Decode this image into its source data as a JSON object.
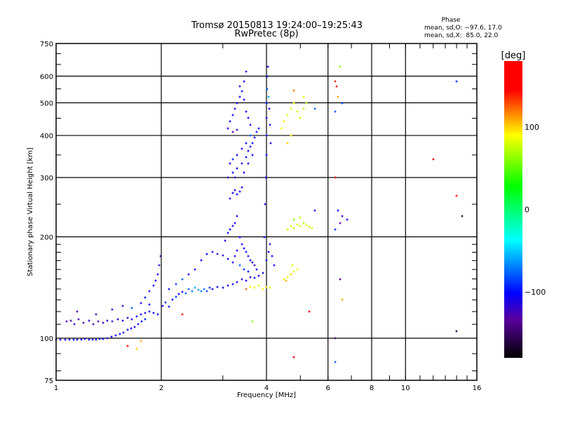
{
  "chart_data": {
    "type": "scatter",
    "title": "Tromsø 20150813 19:24:00–19:25:43",
    "subtitle": "RwPretec (8p)",
    "legend": {
      "title": "Phase",
      "line_o": "mean, sd,O: −97.6, 17.0",
      "line_x": "mean, sd,X:  85.0, 22.0"
    },
    "xlabel": "Frequency [MHz]",
    "ylabel": "Stationary phase Virtual Height [km]",
    "xscale": "log",
    "yscale": "log",
    "xlim": [
      1,
      16
    ],
    "ylim": [
      75,
      750
    ],
    "xticks": [
      1,
      2,
      4,
      6,
      8,
      10,
      16
    ],
    "xtick_labels": [
      "1",
      "2",
      "4",
      "6",
      "8",
      "10",
      "16"
    ],
    "xgrid": [
      2,
      4,
      6,
      8,
      10
    ],
    "yticks": [
      75,
      100,
      200,
      300,
      400,
      500,
      600,
      750
    ],
    "ytick_labels": [
      "75",
      "100",
      "200",
      "300",
      "400",
      "500",
      "600",
      "750"
    ],
    "ygrid": [
      100,
      200,
      300,
      400,
      500,
      600
    ],
    "grid": true,
    "colorbar": {
      "label": "[deg]",
      "range": [
        -180,
        180
      ],
      "ticks": [
        100,
        0,
        -100
      ],
      "tick_labels": [
        "100",
        "0",
        "−100"
      ],
      "stops": [
        {
          "v": -180,
          "c": "#000000"
        },
        {
          "v": -133,
          "c": "#5a00a0"
        },
        {
          "v": -102,
          "c": "#0000ff"
        },
        {
          "v": -37,
          "c": "#00ffff"
        },
        {
          "v": 28,
          "c": "#00ff00"
        },
        {
          "v": 90,
          "c": "#ffff00"
        },
        {
          "v": 145,
          "c": "#ff0000"
        },
        {
          "v": 180,
          "c": "#ff0000"
        }
      ]
    },
    "points_fields": [
      "freq_mhz",
      "height_km",
      "phase_deg"
    ],
    "points": [
      [
        1.0,
        99,
        -110
      ],
      [
        1.03,
        99,
        -110
      ],
      [
        1.06,
        99,
        -105
      ],
      [
        1.09,
        99,
        -110
      ],
      [
        1.12,
        99,
        -100
      ],
      [
        1.15,
        99,
        -110
      ],
      [
        1.18,
        99,
        -105
      ],
      [
        1.21,
        99.5,
        -110
      ],
      [
        1.24,
        99,
        -100
      ],
      [
        1.27,
        99,
        -110
      ],
      [
        1.3,
        99,
        -105
      ],
      [
        1.33,
        99.5,
        -110
      ],
      [
        1.36,
        99.5,
        -100
      ],
      [
        1.4,
        100,
        -110
      ],
      [
        1.44,
        101,
        -105
      ],
      [
        1.48,
        102,
        -110
      ],
      [
        1.52,
        103,
        -100
      ],
      [
        1.56,
        104,
        -110
      ],
      [
        1.6,
        106,
        -105
      ],
      [
        1.64,
        107,
        -100
      ],
      [
        1.68,
        108,
        -110
      ],
      [
        1.72,
        110,
        -105
      ],
      [
        1.76,
        112,
        -100
      ],
      [
        1.8,
        114,
        -95
      ],
      [
        1.07,
        112,
        -125
      ],
      [
        1.1,
        113,
        -130
      ],
      [
        1.13,
        110,
        -120
      ],
      [
        1.16,
        114,
        -125
      ],
      [
        1.2,
        111,
        -130
      ],
      [
        1.24,
        113,
        -120
      ],
      [
        1.28,
        110,
        -125
      ],
      [
        1.32,
        112,
        -130
      ],
      [
        1.36,
        111,
        -120
      ],
      [
        1.4,
        113,
        -115
      ],
      [
        1.45,
        112,
        -125
      ],
      [
        1.5,
        114,
        -110
      ],
      [
        1.55,
        113,
        -115
      ],
      [
        1.6,
        115,
        -120
      ],
      [
        1.65,
        114,
        -110
      ],
      [
        1.7,
        116,
        -105
      ],
      [
        1.75,
        118,
        -100
      ],
      [
        1.8,
        119,
        -110
      ],
      [
        1.85,
        120,
        -105
      ],
      [
        1.9,
        119,
        -100
      ],
      [
        1.95,
        118,
        -110
      ],
      [
        1.15,
        120,
        -130
      ],
      [
        1.3,
        118,
        -125
      ],
      [
        1.45,
        122,
        -120
      ],
      [
        1.55,
        125,
        -120
      ],
      [
        1.65,
        123,
        -80
      ],
      [
        1.75,
        127,
        -110
      ],
      [
        1.85,
        126,
        -100
      ],
      [
        1.8,
        132,
        -100
      ],
      [
        1.85,
        138,
        -110
      ],
      [
        1.9,
        143,
        -105
      ],
      [
        1.93,
        148,
        -110
      ],
      [
        1.95,
        155,
        -100
      ],
      [
        1.97,
        165,
        -120
      ],
      [
        1.99,
        175,
        -130
      ],
      [
        2.02,
        125,
        -100
      ],
      [
        2.06,
        128,
        -95
      ],
      [
        2.1,
        124,
        -100
      ],
      [
        2.15,
        130,
        -105
      ],
      [
        2.2,
        133,
        -90
      ],
      [
        2.25,
        135,
        -100
      ],
      [
        2.3,
        137,
        -110
      ],
      [
        2.35,
        136,
        -80
      ],
      [
        2.4,
        140,
        -75
      ],
      [
        2.45,
        138,
        -70
      ],
      [
        2.5,
        141,
        -60
      ],
      [
        2.55,
        139,
        -65
      ],
      [
        2.6,
        138,
        -70
      ],
      [
        2.65,
        140,
        -75
      ],
      [
        2.7,
        138,
        -85
      ],
      [
        2.75,
        141,
        -95
      ],
      [
        2.8,
        140,
        -110
      ],
      [
        2.9,
        142,
        -100
      ],
      [
        3.0,
        141,
        -105
      ],
      [
        3.1,
        143,
        -110
      ],
      [
        3.2,
        145,
        -100
      ],
      [
        3.3,
        147,
        -110
      ],
      [
        3.4,
        150,
        -120
      ],
      [
        3.5,
        148,
        -105
      ],
      [
        3.6,
        152,
        -110
      ],
      [
        3.7,
        151,
        -100
      ],
      [
        3.8,
        153,
        -110
      ],
      [
        3.9,
        156,
        -105
      ],
      [
        2.1,
        140,
        -100
      ],
      [
        2.2,
        145,
        -90
      ],
      [
        2.3,
        150,
        -80
      ],
      [
        2.4,
        155,
        -100
      ],
      [
        2.5,
        160,
        -110
      ],
      [
        2.6,
        170,
        -105
      ],
      [
        2.7,
        178,
        -100
      ],
      [
        2.8,
        180,
        -110
      ],
      [
        2.9,
        178,
        -120
      ],
      [
        3.0,
        176,
        -115
      ],
      [
        3.1,
        172,
        -100
      ],
      [
        3.2,
        168,
        -110
      ],
      [
        3.25,
        175,
        -100
      ],
      [
        3.3,
        182,
        -110
      ],
      [
        3.05,
        195,
        -110
      ],
      [
        3.1,
        205,
        -105
      ],
      [
        3.15,
        210,
        -100
      ],
      [
        3.2,
        215,
        -110
      ],
      [
        3.25,
        220,
        -105
      ],
      [
        3.3,
        230,
        -110
      ],
      [
        3.35,
        200,
        -100
      ],
      [
        3.4,
        190,
        -110
      ],
      [
        3.45,
        185,
        -105
      ],
      [
        3.5,
        180,
        -100
      ],
      [
        3.55,
        175,
        -110
      ],
      [
        3.6,
        170,
        -105
      ],
      [
        3.65,
        168,
        -110
      ],
      [
        3.7,
        165,
        -120
      ],
      [
        3.75,
        160,
        -105
      ],
      [
        3.35,
        165,
        -80
      ],
      [
        3.45,
        160,
        -90
      ],
      [
        3.55,
        158,
        -100
      ],
      [
        3.15,
        260,
        -110
      ],
      [
        3.2,
        270,
        -105
      ],
      [
        3.25,
        275,
        -110
      ],
      [
        3.3,
        268,
        -100
      ],
      [
        3.35,
        272,
        -110
      ],
      [
        3.4,
        280,
        -105
      ],
      [
        3.1,
        300,
        -110
      ],
      [
        3.2,
        310,
        -100
      ],
      [
        3.3,
        320,
        -105
      ],
      [
        3.4,
        330,
        -110
      ],
      [
        3.5,
        345,
        -100
      ],
      [
        3.55,
        360,
        -105
      ],
      [
        3.6,
        370,
        -110
      ],
      [
        3.65,
        380,
        -100
      ],
      [
        3.7,
        395,
        -105
      ],
      [
        3.75,
        410,
        -110
      ],
      [
        3.8,
        420,
        -100
      ],
      [
        3.2,
        340,
        -95
      ],
      [
        3.3,
        350,
        -110
      ],
      [
        3.4,
        365,
        -105
      ],
      [
        3.5,
        380,
        -100
      ],
      [
        3.6,
        400,
        -80
      ],
      [
        3.15,
        330,
        -110
      ],
      [
        3.25,
        300,
        -120
      ],
      [
        3.45,
        310,
        -105
      ],
      [
        3.55,
        330,
        -110
      ],
      [
        3.65,
        350,
        -100
      ],
      [
        3.1,
        420,
        -110
      ],
      [
        3.15,
        440,
        -105
      ],
      [
        3.2,
        460,
        -100
      ],
      [
        3.25,
        480,
        -110
      ],
      [
        3.3,
        500,
        -105
      ],
      [
        3.35,
        520,
        -110
      ],
      [
        3.4,
        540,
        -100
      ],
      [
        3.45,
        510,
        -105
      ],
      [
        3.5,
        470,
        -110
      ],
      [
        3.55,
        450,
        -100
      ],
      [
        3.6,
        430,
        -105
      ],
      [
        3.2,
        410,
        -130
      ],
      [
        3.3,
        415,
        -120
      ],
      [
        3.35,
        560,
        -110
      ],
      [
        3.45,
        580,
        -105
      ],
      [
        3.5,
        620,
        -110
      ],
      [
        3.95,
        200,
        -100
      ],
      [
        3.97,
        250,
        -105
      ],
      [
        3.98,
        300,
        -110
      ],
      [
        4.0,
        350,
        -100
      ],
      [
        4.0,
        400,
        -105
      ],
      [
        4.0,
        450,
        -110
      ],
      [
        4.0,
        500,
        -100
      ],
      [
        4.02,
        550,
        -80
      ],
      [
        4.02,
        600,
        -105
      ],
      [
        4.03,
        640,
        -110
      ],
      [
        4.05,
        520,
        -60
      ],
      [
        4.08,
        480,
        -105
      ],
      [
        4.1,
        430,
        -100
      ],
      [
        4.12,
        380,
        -110
      ],
      [
        4.0,
        170,
        -100
      ],
      [
        4.05,
        180,
        -110
      ],
      [
        4.1,
        190,
        -105
      ],
      [
        4.15,
        175,
        -100
      ],
      [
        4.2,
        165,
        -110
      ],
      [
        3.6,
        142,
        90
      ],
      [
        3.7,
        141,
        95
      ],
      [
        3.8,
        143,
        85
      ],
      [
        3.9,
        140,
        90
      ],
      [
        4.0,
        142,
        100
      ],
      [
        4.1,
        141,
        80
      ],
      [
        3.5,
        140,
        120
      ],
      [
        4.5,
        150,
        95
      ],
      [
        4.6,
        152,
        90
      ],
      [
        4.7,
        155,
        100
      ],
      [
        4.8,
        158,
        85
      ],
      [
        4.9,
        160,
        90
      ],
      [
        4.55,
        148,
        110
      ],
      [
        4.75,
        165,
        80
      ],
      [
        4.6,
        210,
        75
      ],
      [
        4.7,
        215,
        80
      ],
      [
        4.8,
        212,
        70
      ],
      [
        4.9,
        218,
        85
      ],
      [
        5.0,
        215,
        75
      ],
      [
        5.1,
        220,
        70
      ],
      [
        5.2,
        216,
        80
      ],
      [
        5.3,
        214,
        70
      ],
      [
        5.4,
        212,
        75
      ],
      [
        4.8,
        225,
        60
      ],
      [
        5.0,
        228,
        75
      ],
      [
        4.4,
        420,
        90
      ],
      [
        4.5,
        440,
        95
      ],
      [
        4.6,
        460,
        85
      ],
      [
        4.7,
        480,
        80
      ],
      [
        4.8,
        500,
        90
      ],
      [
        4.9,
        470,
        75
      ],
      [
        5.0,
        450,
        80
      ],
      [
        5.1,
        480,
        70
      ],
      [
        5.2,
        500,
        75
      ],
      [
        4.7,
        400,
        95
      ],
      [
        4.6,
        380,
        100
      ],
      [
        5.1,
        520,
        85
      ],
      [
        4.8,
        545,
        120
      ],
      [
        6.3,
        580,
        140
      ],
      [
        6.35,
        560,
        150
      ],
      [
        6.4,
        520,
        110
      ],
      [
        6.5,
        640,
        60
      ],
      [
        6.3,
        470,
        -80
      ],
      [
        6.6,
        500,
        -90
      ],
      [
        6.3,
        300,
        160
      ],
      [
        6.4,
        240,
        -100
      ],
      [
        6.5,
        220,
        -130
      ],
      [
        6.6,
        230,
        -120
      ],
      [
        6.8,
        225,
        -100
      ],
      [
        6.3,
        210,
        -90
      ],
      [
        6.5,
        150,
        -140
      ],
      [
        6.6,
        130,
        110
      ],
      [
        6.3,
        85,
        -80
      ],
      [
        6.3,
        100,
        -150
      ],
      [
        1.6,
        95,
        170
      ],
      [
        1.7,
        93,
        100
      ],
      [
        1.75,
        98,
        110
      ],
      [
        2.3,
        118,
        170
      ],
      [
        3.65,
        112,
        60
      ],
      [
        4.8,
        88,
        170
      ],
      [
        5.3,
        120,
        150
      ],
      [
        5.5,
        480,
        -80
      ],
      [
        5.5,
        240,
        -100
      ],
      [
        12.0,
        340,
        150
      ],
      [
        14.0,
        265,
        150
      ],
      [
        14.0,
        580,
        -90
      ],
      [
        14.5,
        230,
        -160
      ],
      [
        14.0,
        105,
        -160
      ]
    ]
  }
}
